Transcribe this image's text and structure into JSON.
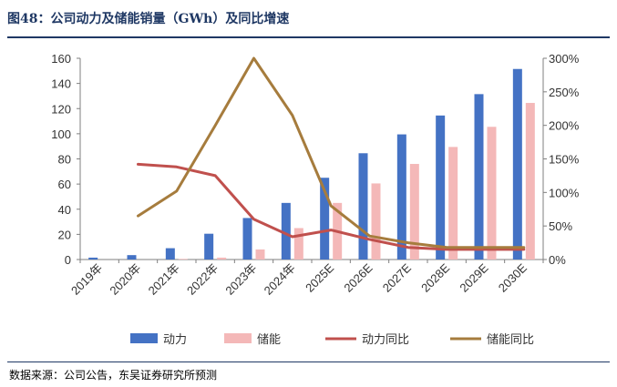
{
  "header": {
    "title": "图48：公司动力及储能销量（GWh）及同比增速"
  },
  "footer": {
    "source": "数据来源：公司公告，东吴证券研究所预测"
  },
  "chart_data": {
    "type": "bar",
    "categories": [
      "2019年",
      "2020年",
      "2021年",
      "2022年",
      "2023年",
      "2024年",
      "2025E",
      "2026E",
      "2027E",
      "2028E",
      "2029E",
      "2030E"
    ],
    "y_left_ticks": [
      "0",
      "20",
      "40",
      "60",
      "80",
      "100",
      "120",
      "140",
      "160"
    ],
    "y_right_ticks": [
      "0%",
      "50%",
      "100%",
      "150%",
      "200%",
      "250%",
      "300%"
    ],
    "ylim_left": [
      0,
      160
    ],
    "ylim_right": [
      0,
      3.0
    ],
    "series": [
      {
        "name": "动力",
        "kind": "bar",
        "axis": "left",
        "color": "#4472c4",
        "values": [
          1.5,
          3.5,
          9,
          20.5,
          33,
          45,
          65,
          84.5,
          99.5,
          114.5,
          131.5,
          151.5
        ]
      },
      {
        "name": "储能",
        "kind": "bar",
        "axis": "left",
        "color": "#f4b8b8",
        "values": [
          null,
          null,
          0.5,
          1.5,
          8,
          25,
          45,
          60.5,
          76,
          89.5,
          105.5,
          124.5
        ]
      },
      {
        "name": "动力同比",
        "kind": "line",
        "axis": "right",
        "color": "#c0504d",
        "values": [
          null,
          1.42,
          1.38,
          1.25,
          0.6,
          0.34,
          0.44,
          0.3,
          0.18,
          0.15,
          0.15,
          0.15
        ]
      },
      {
        "name": "储能同比",
        "kind": "line",
        "axis": "right",
        "color": "#a67c3d",
        "values": [
          null,
          0.65,
          1.02,
          2.0,
          3.0,
          2.15,
          0.8,
          0.35,
          0.25,
          0.18,
          0.18,
          0.18
        ]
      }
    ],
    "legend_position": "bottom",
    "grid": false
  }
}
